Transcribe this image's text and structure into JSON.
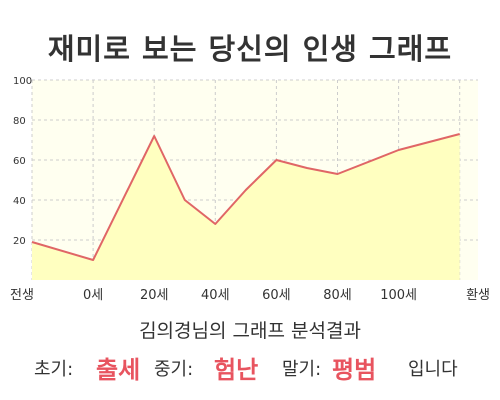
{
  "title": "재미로 보는 당신의 인생 그래프",
  "subtitle": "김의경님의 그래프 분석결과",
  "result": {
    "early_label": "초기:",
    "early_value": "출세",
    "mid_label": "중기:",
    "mid_value": "험난",
    "late_label": "말기:",
    "late_value": "평범",
    "ending": "입니다"
  },
  "colors": {
    "line": "#e06666",
    "fill": "#ffffc0",
    "plot_background": "#fffff0",
    "grid": "#cccccc",
    "highlight": "#e8545f"
  },
  "chart_data": {
    "type": "area",
    "title": "재미로 보는 당신의 인생 그래프",
    "xlabel": "",
    "ylabel": "",
    "x_tick_labels": [
      "전생",
      "0세",
      "20세",
      "40세",
      "60세",
      "80세",
      "100세",
      "환생"
    ],
    "y_ticks": [
      20,
      40,
      60,
      80,
      100
    ],
    "ylim": [
      0,
      100
    ],
    "grid": true,
    "series": [
      {
        "points": [
          {
            "x": "전생",
            "y": 19
          },
          {
            "x": "0세",
            "y": 10
          },
          {
            "x": "20세",
            "y": 72
          },
          {
            "x": "30세",
            "y": 40
          },
          {
            "x": "40세",
            "y": 28
          },
          {
            "x": "50세",
            "y": 45
          },
          {
            "x": "60세",
            "y": 60
          },
          {
            "x": "70세",
            "y": 56
          },
          {
            "x": "80세",
            "y": 53
          },
          {
            "x": "100세",
            "y": 65
          },
          {
            "x": "환생",
            "y": 73
          }
        ]
      }
    ]
  }
}
